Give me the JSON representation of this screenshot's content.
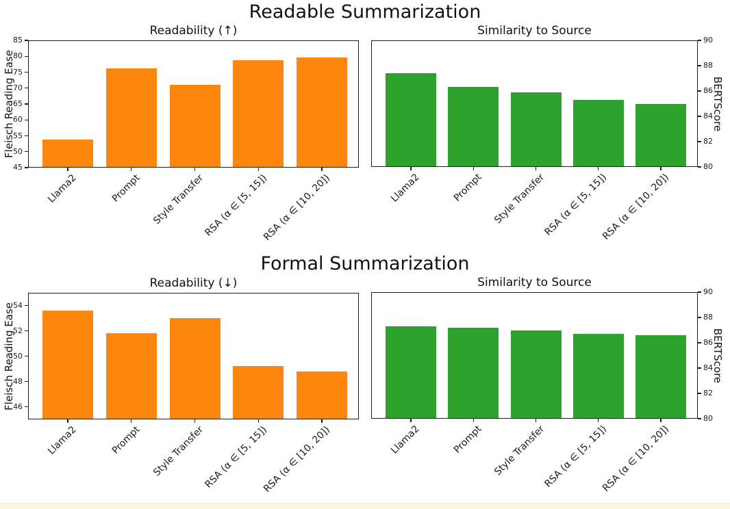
{
  "figure": {
    "background": "#ffffff",
    "axis_color": "#1a1a1a",
    "row_titles": [
      "Readable Summarization",
      "Formal Summarization"
    ],
    "bottom_strip": {
      "color": "#fcf4d9",
      "border_color": "#f3ead0"
    }
  },
  "chart_data": [
    {
      "type": "bar",
      "group": "Readable Summarization",
      "title": "Readability (↑)",
      "ylabel": "Fleisch Reading Ease",
      "ylabel_side": "left",
      "bar_color": "#fd870e",
      "categories": [
        "Llama2",
        "Prompt",
        "Style Transfer",
        "RSA (α ∈ [5, 15])",
        "RSA (α ∈ [10, 20])"
      ],
      "values": [
        53.8,
        76.2,
        71.0,
        78.8,
        79.6
      ],
      "ylim": [
        45,
        85
      ],
      "yticks": [
        45,
        50,
        55,
        60,
        65,
        70,
        75,
        80,
        85
      ],
      "grid": false,
      "legend": null
    },
    {
      "type": "bar",
      "group": "Readable Summarization",
      "title": "Similarity to Source",
      "ylabel": "BERTScore",
      "ylabel_side": "right",
      "bar_color": "#2da32d",
      "categories": [
        "Llama2",
        "Prompt",
        "Style Transfer",
        "RSA (α ∈ [5, 15])",
        "RSA (α ∈ [10, 20])"
      ],
      "values": [
        87.4,
        86.3,
        85.9,
        85.3,
        85.0
      ],
      "ylim": [
        80,
        90
      ],
      "yticks": [
        80,
        82,
        84,
        86,
        88,
        90
      ],
      "grid": false,
      "legend": null
    },
    {
      "type": "bar",
      "group": "Formal Summarization",
      "title": "Readability (↓)",
      "ylabel": "Fleisch Reading Ease",
      "ylabel_side": "left",
      "bar_color": "#fd870e",
      "categories": [
        "Llama2",
        "Prompt",
        "Style Transfer",
        "RSA (α ∈ [5, 15])",
        "RSA (α ∈ [10, 20])"
      ],
      "values": [
        53.6,
        51.8,
        53.0,
        49.2,
        48.8
      ],
      "ylim": [
        45,
        55
      ],
      "yticks": [
        46,
        48,
        50,
        52,
        54
      ],
      "grid": false,
      "legend": null
    },
    {
      "type": "bar",
      "group": "Formal Summarization",
      "title": "Similarity to Source",
      "ylabel": "BERTScore",
      "ylabel_side": "right",
      "bar_color": "#2da32d",
      "categories": [
        "Llama2",
        "Prompt",
        "Style Transfer",
        "RSA (α ∈ [5, 15])",
        "RSA (α ∈ [10, 20])"
      ],
      "values": [
        87.3,
        87.2,
        87.0,
        86.7,
        86.6
      ],
      "ylim": [
        80,
        90
      ],
      "yticks": [
        80,
        82,
        84,
        86,
        88,
        90
      ],
      "grid": false,
      "legend": null
    }
  ]
}
